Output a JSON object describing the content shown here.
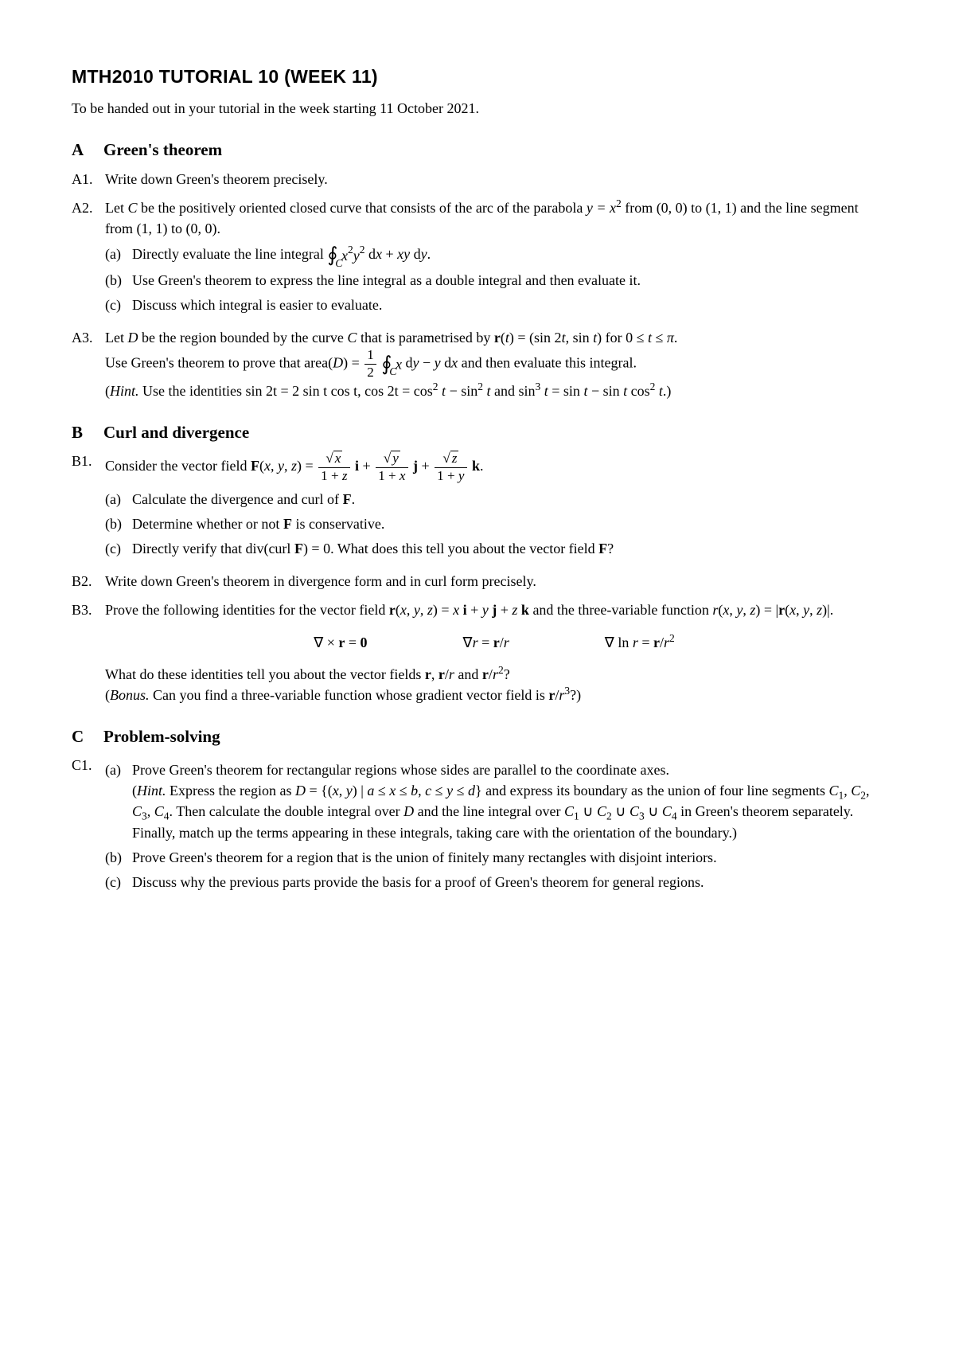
{
  "title": "MTH2010 TUTORIAL 10 (WEEK 11)",
  "intro": "To be handed out in your tutorial in the week starting 11 October 2021.",
  "sections": {
    "A": {
      "letter": "A",
      "title": "Green's theorem",
      "p1": {
        "label": "A1.",
        "text": "Write down Green's theorem precisely."
      },
      "p2": {
        "label": "A2.",
        "intro1": "Let ",
        "C": "C",
        "intro2": " be the positively oriented closed curve that consists of the arc of the parabola ",
        "eq_para": "y = x",
        "intro3": " from (0, 0) to (1, 1) and the line segment from (1, 1) to (0, 0).",
        "a": {
          "label": "(a)",
          "text": "Directly evaluate the line integral "
        },
        "b": {
          "label": "(b)",
          "text": "Use Green's theorem to express the line integral as a double integral and then evaluate it."
        },
        "c": {
          "label": "(c)",
          "text": "Discuss which integral is easier to evaluate."
        }
      },
      "p3": {
        "label": "A3.",
        "t1": "Let ",
        "D": "D",
        "t2": " be the region bounded by the curve ",
        "t3": " that is parametrised by ",
        "t4": "Use Green's theorem to prove that area(",
        "t5": ") = ",
        "t6": " and then evaluate this integral.",
        "hint_lead": "Hint.",
        "hint_text": " Use the identities sin 2t = 2 sin t cos t, cos 2t = cos"
      }
    },
    "B": {
      "letter": "B",
      "title": "Curl and divergence",
      "p1": {
        "label": "B1.",
        "t": "Consider the vector field ",
        "a": {
          "label": "(a)",
          "text": "Calculate the divergence and curl of "
        },
        "b": {
          "label": "(b)",
          "text": "Determine whether or not ",
          "text2": " is conservative."
        },
        "c": {
          "label": "(c)",
          "text": "Directly verify that div(curl ",
          "text2": ") = 0. What does this tell you about the vector field ",
          "q": "?"
        }
      },
      "p2": {
        "label": "B2.",
        "text": "Write down Green's theorem in divergence form and in curl form precisely."
      },
      "p3": {
        "label": "B3.",
        "t1": "Prove the following identities for the vector field ",
        "t2": " and the three-variable function ",
        "t3": "What do these identities tell you about the vector fields ",
        "bonus_lead": "Bonus.",
        "bonus_text": " Can you find a three-variable function whose gradient vector field is "
      }
    },
    "C": {
      "letter": "C",
      "title": "Problem-solving",
      "p1": {
        "label": "C1.",
        "a": {
          "label": "(a)",
          "text": "Prove Green's theorem for rectangular regions whose sides are parallel to the coordinate axes.",
          "hint_lead": "Hint.",
          "hint_text1": " Express the region as ",
          "hint_text2": " and express its boundary as the union of four line segments ",
          "hint_text3": ". Then calculate the double integral over ",
          "hint_text4": " and the line integral over ",
          "hint_text5": " in Green's theorem separately. Finally, match up the terms appearing in these integrals, taking care with the orientation of the boundary.)"
        },
        "b": {
          "label": "(b)",
          "text": "Prove Green's theorem for a region that is the union of finitely many rectangles with disjoint interiors."
        },
        "c": {
          "label": "(c)",
          "text": "Discuss why the previous parts provide the basis for a proof of Green's theorem for general regions."
        }
      }
    }
  }
}
